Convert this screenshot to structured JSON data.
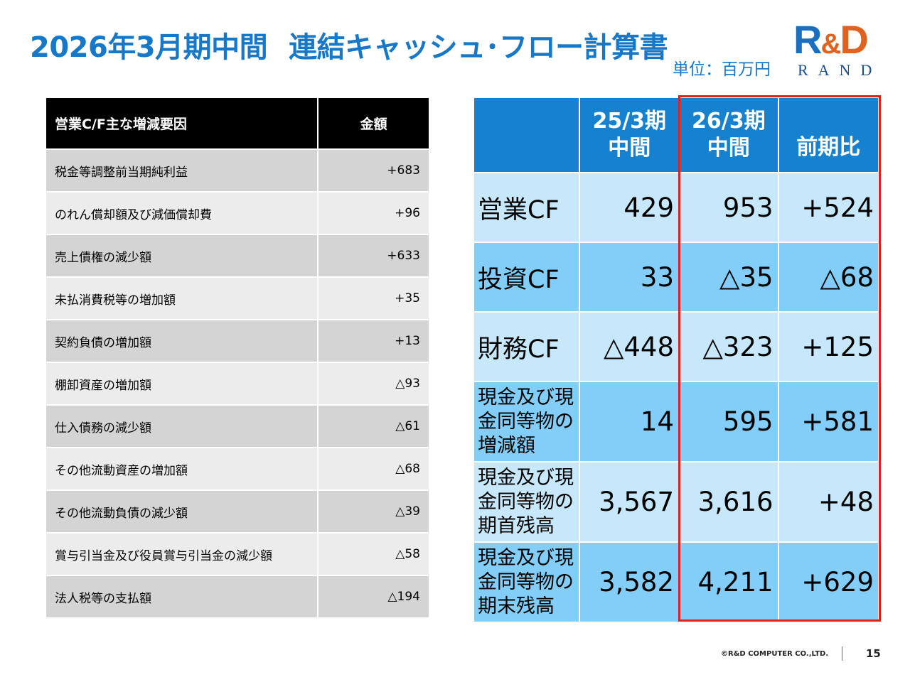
{
  "header": {
    "title_part1": "2026年3月期中間",
    "title_part2": "連結キャッシュ･フロー計算書",
    "unit": "単位：百万円"
  },
  "logo": {
    "mark_r": "R",
    "mark_amp": "&",
    "mark_d": "D",
    "sub": "RAND"
  },
  "left_table": {
    "header_item": "営業C/F主な増減要因",
    "header_amount": "金額",
    "rows": [
      {
        "item": "税金等調整前当期純利益",
        "amount": "+683"
      },
      {
        "item": "のれん償却額及び減価償却費",
        "amount": "+96"
      },
      {
        "item": "売上債権の減少額",
        "amount": "+633"
      },
      {
        "item": "未払消費税等の増加額",
        "amount": "+35"
      },
      {
        "item": "契約負債の増加額",
        "amount": "+13"
      },
      {
        "item": "棚卸資産の増加額",
        "amount": "△93"
      },
      {
        "item": "仕入債務の減少額",
        "amount": "△61"
      },
      {
        "item": "その他流動資産の増加額",
        "amount": "△68"
      },
      {
        "item": "その他流動負債の減少額",
        "amount": "△39"
      },
      {
        "item": "賞与引当金及び役員賞与引当金の減少額",
        "amount": "△58"
      },
      {
        "item": "法人税等の支払額",
        "amount": "△194"
      }
    ]
  },
  "right_table": {
    "col1_line1": "25/3期",
    "col1_line2": "中間",
    "col2_line1": "26/3期",
    "col2_line2": "中間",
    "col3": "前期比",
    "rows": [
      {
        "label": "営業CF",
        "v1": "429",
        "v2": "953",
        "diff": "+524"
      },
      {
        "label": "投資CF",
        "v1": "33",
        "v2": "△35",
        "diff": "△68"
      },
      {
        "label": "財務CF",
        "v1": "△448",
        "v2": "△323",
        "diff": "+125"
      },
      {
        "label": "現金及び現金同等物の増減額",
        "v1": "14",
        "v2": "595",
        "diff": "+581"
      },
      {
        "label": "現金及び現金同等物の期首残高",
        "v1": "3,567",
        "v2": "3,616",
        "diff": "+48"
      },
      {
        "label": "現金及び現金同等物の期末残高",
        "v1": "3,582",
        "v2": "4,211",
        "diff": "+629"
      }
    ]
  },
  "footer": {
    "copyright": "©R&D COMPUTER CO.,LTD.",
    "page": "15"
  },
  "colors": {
    "accent": "#1878c8",
    "header_blue": "#1681cf",
    "row_light": "#c7e8fb",
    "row_mid": "#82cef8",
    "highlight": "#e0211e",
    "logo_orange": "#e0621e"
  }
}
